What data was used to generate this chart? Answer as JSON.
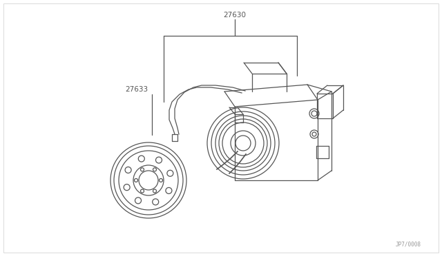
{
  "bg_color": "#ffffff",
  "line_color": "#555555",
  "label_27630": "27630",
  "label_27633": "27633",
  "watermark": "JP7/0008",
  "fig_width": 6.4,
  "fig_height": 3.72,
  "dpi": 100
}
